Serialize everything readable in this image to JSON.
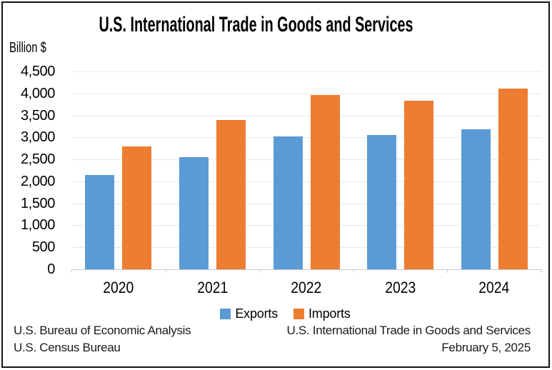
{
  "title": "U.S. International Trade in Goods and Services",
  "y_axis_unit_label": "Billion $",
  "chart_data": {
    "type": "bar",
    "title": "U.S. International Trade in Goods and Services",
    "ylabel": "Billion $",
    "xlabel": "",
    "categories": [
      "2020",
      "2021",
      "2022",
      "2023",
      "2024"
    ],
    "series": [
      {
        "name": "Exports",
        "color": "#5B9BD5",
        "values": [
          2150,
          2550,
          3020,
          3050,
          3190
        ]
      },
      {
        "name": "Imports",
        "color": "#ED7D31",
        "values": [
          2800,
          3400,
          3970,
          3840,
          4110
        ]
      }
    ],
    "ylim": [
      0,
      4500
    ],
    "ytick_interval": 500,
    "ytick_labels": [
      "0",
      "500",
      "1,000",
      "1,500",
      "2,000",
      "2,500",
      "3,000",
      "3,500",
      "4,000",
      "4,500"
    ],
    "grid": true,
    "legend_position": "bottom",
    "gridline_color": "#E8E8E8",
    "axis_color": "#C9C9C9"
  },
  "footer": {
    "left_line1": "U.S. Bureau of Economic Analysis",
    "left_line2": "U.S. Census Bureau",
    "right_line1": "U.S. International Trade in Goods and Services",
    "right_line2": "February 5, 2025"
  }
}
